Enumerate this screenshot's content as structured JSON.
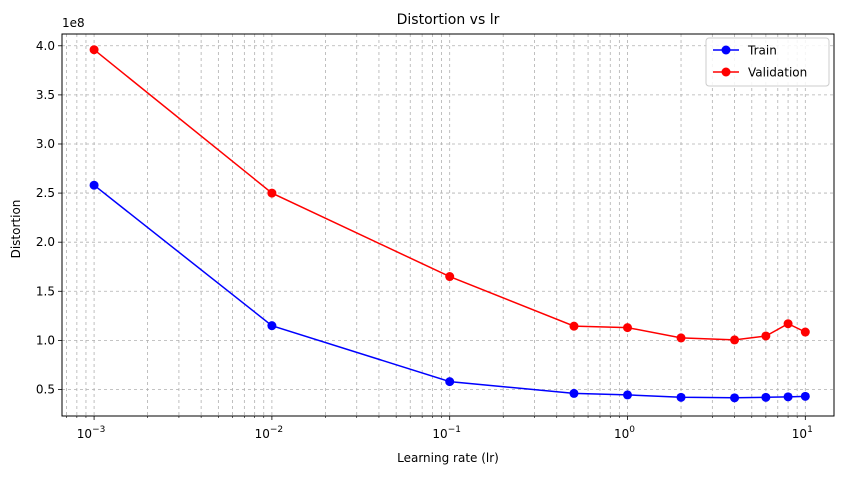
{
  "chart_data": {
    "type": "line",
    "title": "Distortion vs lr",
    "xlabel": "Learning rate (lr)",
    "ylabel": "Distortion",
    "xscale": "log",
    "xlim": [
      0.00066,
      14.5
    ],
    "ylim": [
      23000000.0,
      412000000.0
    ],
    "y_offset_label": "1e8",
    "y_ticks": [
      0.5,
      1.0,
      1.5,
      2.0,
      2.5,
      3.0,
      3.5,
      4.0
    ],
    "y_tick_labels": [
      "0.5",
      "1.0",
      "1.5",
      "2.0",
      "2.5",
      "3.0",
      "3.5",
      "4.0"
    ],
    "x_ticks": [
      {
        "value": 0.001,
        "base": "10",
        "exp": "−3"
      },
      {
        "value": 0.01,
        "base": "10",
        "exp": "−2"
      },
      {
        "value": 0.1,
        "base": "10",
        "exp": "−1"
      },
      {
        "value": 1,
        "base": "10",
        "exp": "0"
      },
      {
        "value": 10,
        "base": "10",
        "exp": "1"
      }
    ],
    "grid": "both (major and minor), dashed",
    "legend_position": "top-right",
    "x": [
      0.001,
      0.01,
      0.1,
      0.5,
      1,
      2,
      4,
      6,
      8,
      10
    ],
    "series": [
      {
        "name": "Train",
        "color": "#0000ff",
        "values": [
          258000000.0,
          115000000.0,
          58000000.0,
          46000000.0,
          44500000.0,
          42000000.0,
          41500000.0,
          42000000.0,
          42500000.0,
          43000000.0
        ]
      },
      {
        "name": "Validation",
        "color": "#ff0000",
        "values": [
          396000000.0,
          250000000.0,
          165000000.0,
          114500000.0,
          113000000.0,
          102500000.0,
          100500000.0,
          104500000.0,
          117000000.0,
          108500000.0
        ]
      }
    ]
  }
}
